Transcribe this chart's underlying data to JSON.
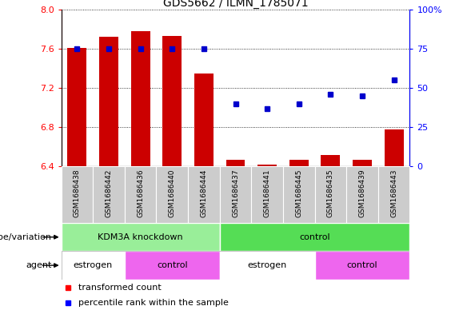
{
  "title": "GDS5662 / ILMN_1785071",
  "samples": [
    "GSM1686438",
    "GSM1686442",
    "GSM1686436",
    "GSM1686440",
    "GSM1686444",
    "GSM1686437",
    "GSM1686441",
    "GSM1686445",
    "GSM1686435",
    "GSM1686439",
    "GSM1686443"
  ],
  "transformed_count": [
    7.61,
    7.72,
    7.78,
    7.73,
    7.35,
    6.47,
    6.42,
    6.47,
    6.52,
    6.47,
    6.78
  ],
  "percentile_rank": [
    75,
    75,
    75,
    75,
    75,
    40,
    37,
    40,
    46,
    45,
    55
  ],
  "ylim_left": [
    6.4,
    8.0
  ],
  "ylim_right": [
    0,
    100
  ],
  "yticks_left": [
    6.4,
    6.8,
    7.2,
    7.6,
    8.0
  ],
  "yticks_right": [
    0,
    25,
    50,
    75,
    100
  ],
  "bar_color": "#cc0000",
  "dot_color": "#0000cc",
  "geno_groups": [
    {
      "text": "KDM3A knockdown",
      "start": 0,
      "end": 5,
      "color": "#99ee99"
    },
    {
      "text": "control",
      "start": 5,
      "end": 11,
      "color": "#55dd55"
    }
  ],
  "agent_groups": [
    {
      "text": "estrogen",
      "start": 0,
      "end": 2,
      "color": "#ffffff"
    },
    {
      "text": "control",
      "start": 2,
      "end": 5,
      "color": "#ee66ee"
    },
    {
      "text": "estrogen",
      "start": 5,
      "end": 8,
      "color": "#ffffff"
    },
    {
      "text": "control",
      "start": 8,
      "end": 11,
      "color": "#ee66ee"
    }
  ]
}
